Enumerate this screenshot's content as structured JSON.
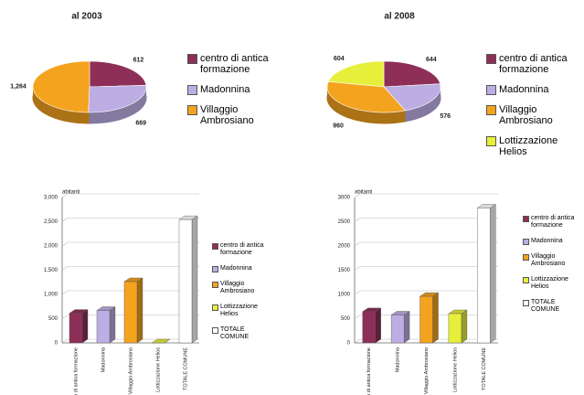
{
  "chart_data": [
    {
      "type": "pie",
      "title": "al 2003",
      "categories": [
        "centro di antica formazione",
        "Madonnina",
        "Villaggio Ambrosiano"
      ],
      "values": [
        612,
        669,
        1264
      ],
      "value_labels": [
        "612",
        "669",
        "1,264"
      ],
      "colors": [
        "#8e2f57",
        "#bcaee3",
        "#f4a31f"
      ]
    },
    {
      "type": "pie",
      "title": "al 2008",
      "categories": [
        "centro di antica formazione",
        "Madonnina",
        "Villaggio Ambrosiano",
        "Lottizzazione Helios"
      ],
      "values": [
        644,
        576,
        960,
        604
      ],
      "colors": [
        "#8e2f57",
        "#bcaee3",
        "#f4a31f",
        "#e6f03a"
      ]
    },
    {
      "type": "bar",
      "y_label": "abitanti",
      "categories": [
        "centro di antica formazione",
        "Madonnina",
        "Villaggio Ambrosiano",
        "Lottizzazione Helios",
        "TOTALE COMUNE"
      ],
      "values": [
        612,
        669,
        1264,
        0,
        2545
      ],
      "colors": [
        "#8e2f57",
        "#bcaee3",
        "#f4a31f",
        "#e6f03a",
        "#ffffff"
      ],
      "ylim": [
        0,
        3000
      ],
      "yticks": [
        0,
        500,
        {
          "value": 1000,
          "label": "1,000"
        },
        {
          "value": 1500,
          "label": "1,500"
        },
        {
          "value": 2000,
          "label": "2,000"
        },
        {
          "value": 2500,
          "label": "2,500"
        },
        {
          "value": 3000,
          "label": "3,000"
        }
      ],
      "grid": true
    },
    {
      "type": "bar",
      "y_label": "abitanti",
      "categories": [
        "centro di antica formazione",
        "Madonnina",
        "Villaggio Ambrosiano",
        "Lottizzazione Helios",
        "TOTALE COMUNE"
      ],
      "values": [
        644,
        576,
        960,
        604,
        2784
      ],
      "colors": [
        "#8e2f57",
        "#bcaee3",
        "#f4a31f",
        "#e6f03a",
        "#ffffff"
      ],
      "ylim": [
        0,
        3000
      ],
      "yticks": [
        0,
        500,
        1000,
        1500,
        2000,
        2500,
        3000
      ],
      "grid": true
    }
  ]
}
